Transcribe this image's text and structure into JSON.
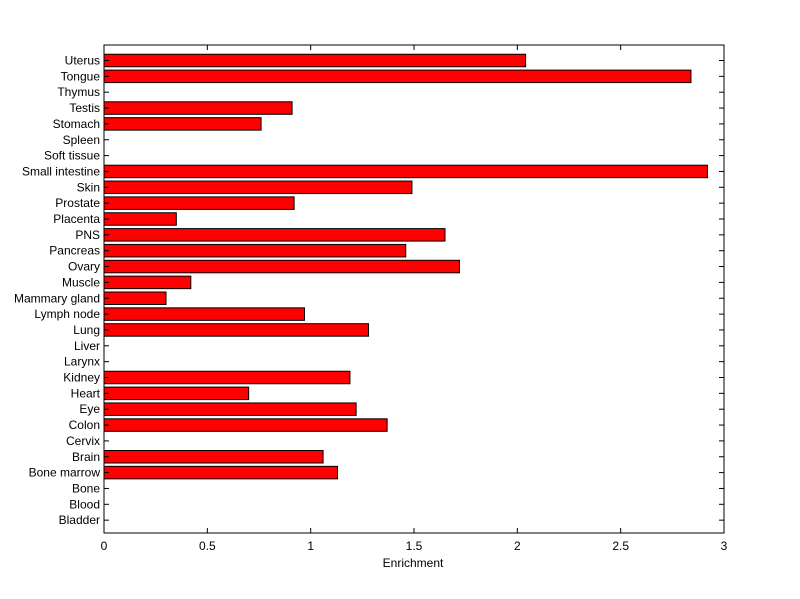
{
  "chart_data": {
    "type": "bar",
    "orientation": "horizontal",
    "categories": [
      "Uterus",
      "Tongue",
      "Thymus",
      "Testis",
      "Stomach",
      "Spleen",
      "Soft tissue",
      "Small intestine",
      "Skin",
      "Prostate",
      "Placenta",
      "PNS",
      "Pancreas",
      "Ovary",
      "Muscle",
      "Mammary gland",
      "Lymph node",
      "Lung",
      "Liver",
      "Larynx",
      "Kidney",
      "Heart",
      "Eye",
      "Colon",
      "Cervix",
      "Brain",
      "Bone marrow",
      "Bone",
      "Blood",
      "Bladder"
    ],
    "values": [
      2.04,
      2.84,
      0,
      0.91,
      0.76,
      0,
      0,
      2.92,
      1.49,
      0.92,
      0.35,
      1.65,
      1.46,
      1.72,
      0.42,
      0.3,
      0.97,
      1.28,
      0,
      0,
      1.19,
      0.7,
      1.22,
      1.37,
      0,
      1.06,
      1.13,
      0,
      0,
      0
    ],
    "xlabel": "Enrichment",
    "ylabel": "",
    "title": "",
    "xlim": [
      0,
      3
    ],
    "xticks": [
      "0",
      "0.5",
      "1",
      "1.5",
      "2",
      "2.5",
      "3"
    ],
    "grid": false,
    "bar_color": "#ff0000",
    "edge_color": "#000000"
  }
}
